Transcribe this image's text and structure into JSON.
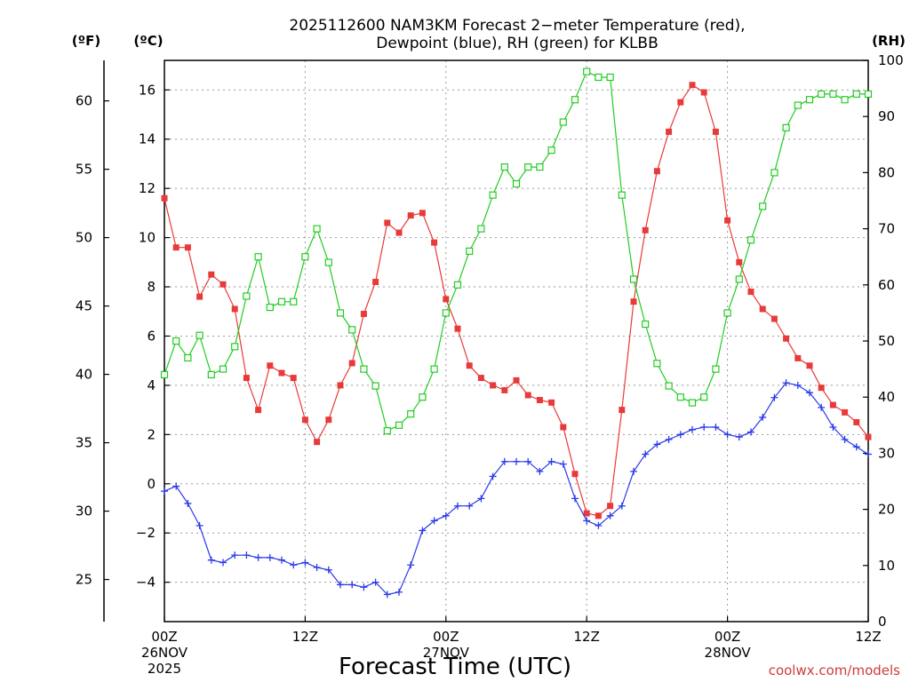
{
  "chart_data": {
    "type": "line",
    "title_line1": "2025112600 NAM3KM Forecast 2−meter Temperature (red),",
    "title_line2": "Dewpoint (blue), RH (green) for KLBB",
    "unit_f": "(ºF)",
    "unit_c": "(ºC)",
    "unit_rh": "(RH)",
    "xlabel": "Forecast Time (UTC)",
    "credit": "coolwx.com/models",
    "x_range_hours": [
      0,
      60
    ],
    "y_range_c": [
      -5.6,
      17.2
    ],
    "y_range_rh": [
      0,
      100
    ],
    "celsius_ticks": [
      "-4",
      "-2",
      "0",
      "2",
      "4",
      "6",
      "8",
      "10",
      "12",
      "14",
      "16"
    ],
    "fahrenheit_ticks": [
      "25",
      "30",
      "35",
      "40",
      "45",
      "50",
      "55",
      "60"
    ],
    "rh_ticks": [
      "0",
      "10",
      "20",
      "30",
      "40",
      "50",
      "60",
      "70",
      "80",
      "90",
      "100"
    ],
    "x_ticks": [
      {
        "hour": 0,
        "lines": [
          "00Z",
          "26NOV",
          "2025"
        ]
      },
      {
        "hour": 12,
        "lines": [
          "12Z"
        ]
      },
      {
        "hour": 24,
        "lines": [
          "00Z",
          "27NOV"
        ]
      },
      {
        "hour": 36,
        "lines": [
          "12Z"
        ]
      },
      {
        "hour": 48,
        "lines": [
          "00Z",
          "28NOV"
        ]
      },
      {
        "hour": 60,
        "lines": [
          "12Z"
        ]
      }
    ],
    "series": [
      {
        "name": "Temperature",
        "unit": "C",
        "color": "#e83a3a",
        "marker": "filled-square",
        "values": [
          11.6,
          9.6,
          9.6,
          7.6,
          8.5,
          8.1,
          7.1,
          4.3,
          3.0,
          4.8,
          4.5,
          4.3,
          2.6,
          1.7,
          2.6,
          4.0,
          4.9,
          6.9,
          8.2,
          10.6,
          10.2,
          10.9,
          11.0,
          9.8,
          7.5,
          6.3,
          4.8,
          4.3,
          4.0,
          3.8,
          4.2,
          3.6,
          3.4,
          3.3,
          2.3,
          0.4,
          -1.2,
          -1.3,
          -0.9,
          3.0,
          7.4,
          10.3,
          12.7,
          14.3,
          15.5,
          16.2,
          15.9,
          14.3,
          10.7,
          9.0,
          7.8,
          7.1,
          6.7,
          5.9,
          5.1,
          4.8,
          3.9,
          3.2,
          2.9,
          2.5,
          1.9
        ]
      },
      {
        "name": "Dewpoint",
        "unit": "C",
        "color": "#2a3ae8",
        "marker": "plus",
        "values": [
          -0.3,
          -0.1,
          -0.8,
          -1.7,
          -3.1,
          -3.2,
          -2.9,
          -2.9,
          -3.0,
          -3.0,
          -3.1,
          -3.3,
          -3.2,
          -3.4,
          -3.5,
          -4.1,
          -4.1,
          -4.2,
          -4.0,
          -4.5,
          -4.4,
          -3.3,
          -1.9,
          -1.5,
          -1.3,
          -0.9,
          -0.9,
          -0.6,
          0.3,
          0.9,
          0.9,
          0.9,
          0.5,
          0.9,
          0.8,
          -0.6,
          -1.5,
          -1.7,
          -1.3,
          -0.9,
          0.5,
          1.2,
          1.6,
          1.8,
          2.0,
          2.2,
          2.3,
          2.3,
          2.0,
          1.9,
          2.1,
          2.7,
          3.5,
          4.1,
          4.0,
          3.7,
          3.1,
          2.3,
          1.8,
          1.5,
          1.2
        ]
      },
      {
        "name": "RH",
        "unit": "%",
        "color": "#22cc22",
        "marker": "open-square",
        "values": [
          44,
          50,
          47,
          51,
          44,
          45,
          49,
          58,
          65,
          56,
          57,
          57,
          65,
          70,
          64,
          55,
          52,
          45,
          42,
          34,
          35,
          37,
          40,
          45,
          55,
          60,
          66,
          70,
          76,
          81,
          78,
          81,
          81,
          84,
          89,
          93,
          98,
          97,
          97,
          76,
          61,
          53,
          46,
          42,
          40,
          39,
          40,
          45,
          55,
          61,
          68,
          74,
          80,
          88,
          92,
          93,
          94,
          94,
          93,
          94,
          94
        ]
      }
    ]
  }
}
